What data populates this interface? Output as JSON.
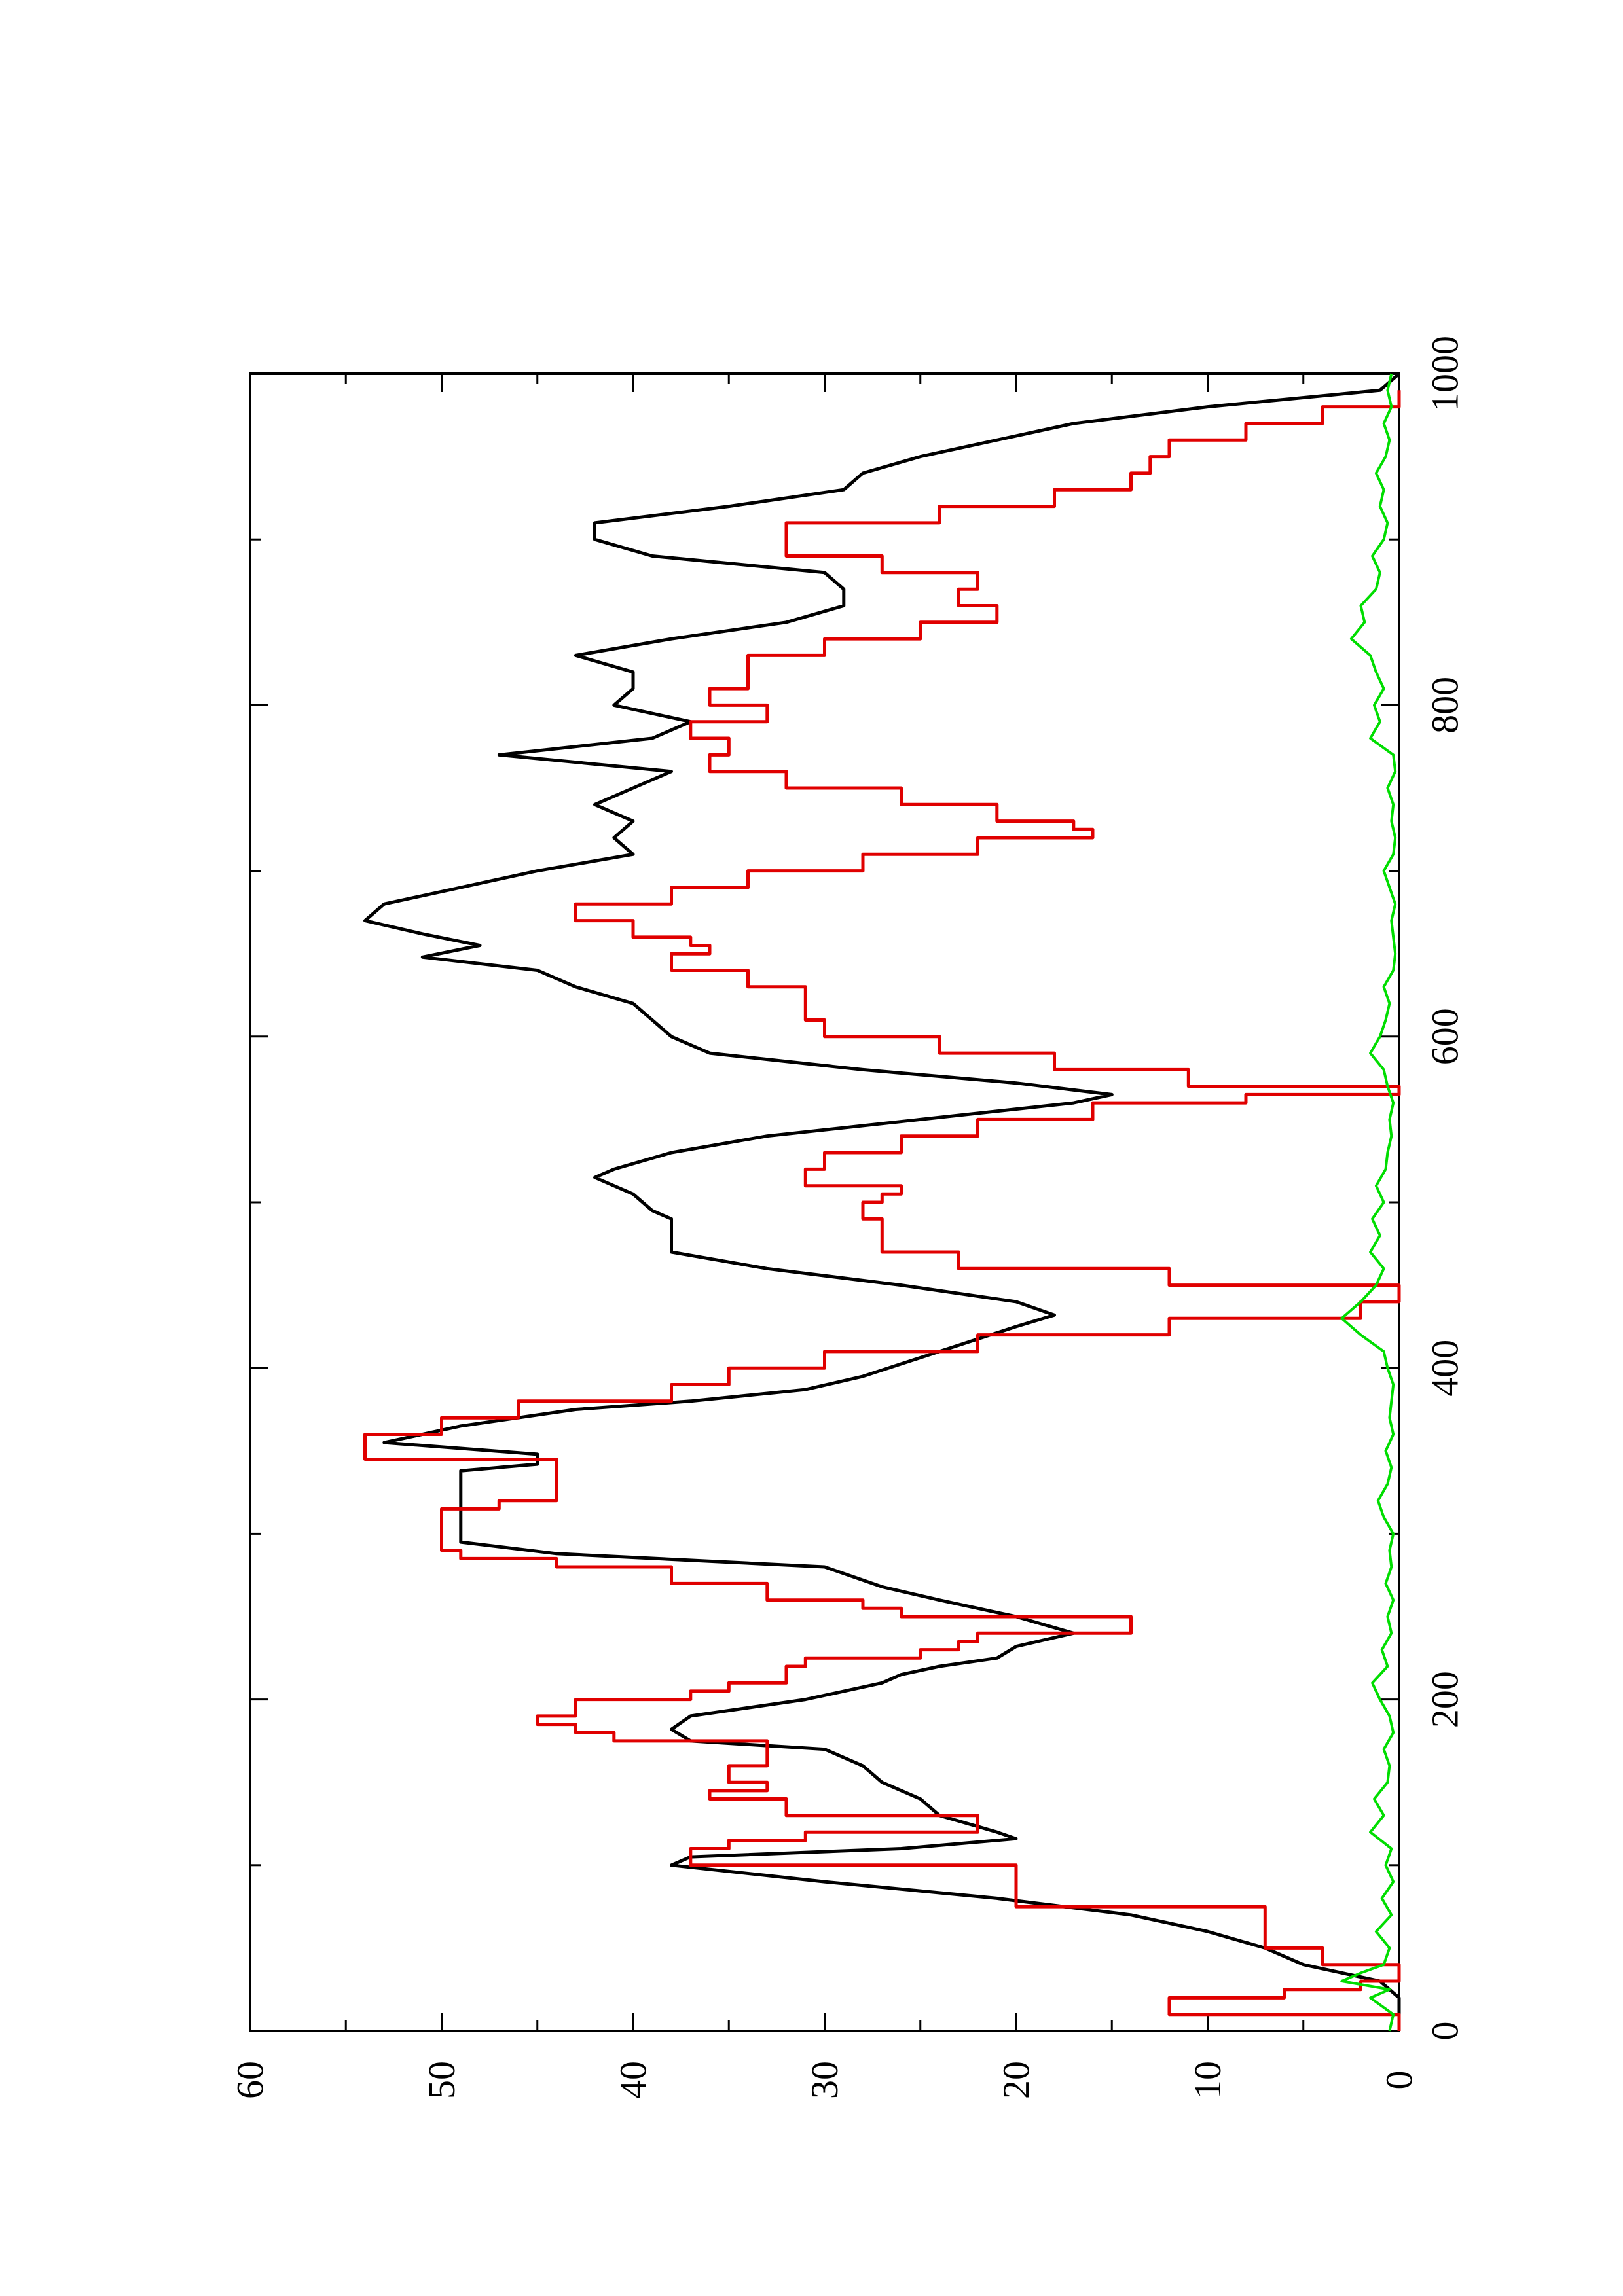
{
  "chart_data": {
    "type": "line",
    "orientation": "page rotated 90 degrees counter-clockwise",
    "title": "",
    "xlabel": "",
    "ylabel": "",
    "xlim": [
      0,
      1000
    ],
    "ylim": [
      0,
      60
    ],
    "x_ticks": [
      "0",
      "200",
      "400",
      "600",
      "800",
      "1000"
    ],
    "y_ticks": [
      "0",
      "10",
      "20",
      "30",
      "40",
      "50",
      "60"
    ],
    "grid": false,
    "legend": "none",
    "series": [
      {
        "color": "#000000",
        "style": "line",
        "points": [
          [
            0,
            0
          ],
          [
            10,
            0
          ],
          [
            20,
            0
          ],
          [
            30,
            1
          ],
          [
            40,
            5
          ],
          [
            50,
            7
          ],
          [
            60,
            10
          ],
          [
            70,
            14
          ],
          [
            80,
            21
          ],
          [
            90,
            30
          ],
          [
            100,
            38
          ],
          [
            105,
            37
          ],
          [
            110,
            26
          ],
          [
            116,
            20
          ],
          [
            120,
            21
          ],
          [
            130,
            24
          ],
          [
            140,
            25
          ],
          [
            150,
            27
          ],
          [
            160,
            28
          ],
          [
            170,
            30
          ],
          [
            175,
            37
          ],
          [
            182,
            38
          ],
          [
            190,
            37
          ],
          [
            200,
            31
          ],
          [
            210,
            27
          ],
          [
            215,
            26
          ],
          [
            220,
            24
          ],
          [
            225,
            21
          ],
          [
            232,
            20
          ],
          [
            240,
            17
          ],
          [
            250,
            20
          ],
          [
            260,
            24
          ],
          [
            268,
            27
          ],
          [
            280,
            30
          ],
          [
            288,
            44
          ],
          [
            295,
            49
          ],
          [
            310,
            49
          ],
          [
            320,
            49
          ],
          [
            330,
            49
          ],
          [
            338,
            49
          ],
          [
            342,
            45
          ],
          [
            348,
            45
          ],
          [
            355,
            53
          ],
          [
            365,
            49
          ],
          [
            375,
            43
          ],
          [
            380,
            37
          ],
          [
            387,
            31
          ],
          [
            395,
            28
          ],
          [
            410,
            24
          ],
          [
            425,
            20
          ],
          [
            432,
            18
          ],
          [
            440,
            20
          ],
          [
            450,
            26
          ],
          [
            460,
            33
          ],
          [
            470,
            38
          ],
          [
            480,
            38
          ],
          [
            490,
            38
          ],
          [
            495,
            39
          ],
          [
            505,
            40
          ],
          [
            515,
            42
          ],
          [
            520,
            41
          ],
          [
            530,
            38
          ],
          [
            540,
            33
          ],
          [
            550,
            25
          ],
          [
            560,
            17
          ],
          [
            565,
            15
          ],
          [
            572,
            20
          ],
          [
            580,
            28
          ],
          [
            590,
            36
          ],
          [
            600,
            38
          ],
          [
            610,
            39
          ],
          [
            620,
            40
          ],
          [
            630,
            43
          ],
          [
            640,
            45
          ],
          [
            648,
            51
          ],
          [
            655,
            48
          ],
          [
            662,
            51
          ],
          [
            670,
            54
          ],
          [
            680,
            53
          ],
          [
            690,
            49
          ],
          [
            700,
            45
          ],
          [
            710,
            40
          ],
          [
            720,
            41
          ],
          [
            730,
            40
          ],
          [
            740,
            42
          ],
          [
            750,
            40
          ],
          [
            760,
            38
          ],
          [
            770,
            47
          ],
          [
            780,
            39
          ],
          [
            790,
            37
          ],
          [
            800,
            41
          ],
          [
            810,
            40
          ],
          [
            820,
            40
          ],
          [
            830,
            43
          ],
          [
            840,
            38
          ],
          [
            850,
            32
          ],
          [
            860,
            29
          ],
          [
            870,
            29
          ],
          [
            880,
            30
          ],
          [
            890,
            39
          ],
          [
            900,
            42
          ],
          [
            910,
            42
          ],
          [
            920,
            35
          ],
          [
            930,
            29
          ],
          [
            940,
            28
          ],
          [
            950,
            25
          ],
          [
            960,
            21
          ],
          [
            970,
            17
          ],
          [
            980,
            10
          ],
          [
            990,
            1
          ],
          [
            1000,
            0
          ]
        ]
      },
      {
        "color": "#e00000",
        "style": "step",
        "points": [
          [
            0,
            0
          ],
          [
            10,
            12
          ],
          [
            20,
            6
          ],
          [
            25,
            2
          ],
          [
            30,
            0
          ],
          [
            40,
            4
          ],
          [
            50,
            7
          ],
          [
            60,
            7
          ],
          [
            75,
            20
          ],
          [
            100,
            37
          ],
          [
            110,
            35
          ],
          [
            115,
            31
          ],
          [
            120,
            22
          ],
          [
            130,
            32
          ],
          [
            140,
            36
          ],
          [
            145,
            33
          ],
          [
            150,
            35
          ],
          [
            160,
            33
          ],
          [
            170,
            33
          ],
          [
            175,
            41
          ],
          [
            180,
            43
          ],
          [
            185,
            45
          ],
          [
            190,
            43
          ],
          [
            200,
            37
          ],
          [
            205,
            35
          ],
          [
            210,
            32
          ],
          [
            220,
            31
          ],
          [
            225,
            25
          ],
          [
            230,
            23
          ],
          [
            235,
            22
          ],
          [
            240,
            14
          ],
          [
            250,
            26
          ],
          [
            255,
            28
          ],
          [
            260,
            33
          ],
          [
            270,
            38
          ],
          [
            280,
            44
          ],
          [
            285,
            49
          ],
          [
            290,
            50
          ],
          [
            310,
            50
          ],
          [
            315,
            47
          ],
          [
            320,
            44
          ],
          [
            340,
            44
          ],
          [
            345,
            54
          ],
          [
            350,
            54
          ],
          [
            360,
            50
          ],
          [
            370,
            46
          ],
          [
            380,
            38
          ],
          [
            390,
            35
          ],
          [
            400,
            30
          ],
          [
            410,
            22
          ],
          [
            420,
            12
          ],
          [
            430,
            2
          ],
          [
            440,
            0
          ],
          [
            450,
            12
          ],
          [
            460,
            23
          ],
          [
            470,
            27
          ],
          [
            480,
            27
          ],
          [
            490,
            28
          ],
          [
            500,
            27
          ],
          [
            505,
            26
          ],
          [
            510,
            31
          ],
          [
            520,
            30
          ],
          [
            530,
            26
          ],
          [
            540,
            22
          ],
          [
            550,
            16
          ],
          [
            560,
            8
          ],
          [
            565,
            0
          ],
          [
            570,
            11
          ],
          [
            580,
            18
          ],
          [
            590,
            24
          ],
          [
            600,
            30
          ],
          [
            610,
            31
          ],
          [
            620,
            31
          ],
          [
            630,
            34
          ],
          [
            640,
            38
          ],
          [
            650,
            36
          ],
          [
            655,
            37
          ],
          [
            660,
            40
          ],
          [
            670,
            43
          ],
          [
            680,
            38
          ],
          [
            690,
            34
          ],
          [
            700,
            28
          ],
          [
            710,
            22
          ],
          [
            720,
            16
          ],
          [
            725,
            17
          ],
          [
            730,
            21
          ],
          [
            740,
            26
          ],
          [
            750,
            32
          ],
          [
            760,
            36
          ],
          [
            770,
            35
          ],
          [
            780,
            37
          ],
          [
            790,
            33
          ],
          [
            800,
            36
          ],
          [
            810,
            34
          ],
          [
            820,
            34
          ],
          [
            830,
            30
          ],
          [
            840,
            25
          ],
          [
            850,
            21
          ],
          [
            860,
            23
          ],
          [
            870,
            22
          ],
          [
            880,
            27
          ],
          [
            890,
            32
          ],
          [
            900,
            32
          ],
          [
            910,
            24
          ],
          [
            920,
            18
          ],
          [
            930,
            14
          ],
          [
            940,
            13
          ],
          [
            950,
            12
          ],
          [
            960,
            8
          ],
          [
            970,
            4
          ],
          [
            980,
            0
          ],
          [
            990,
            0
          ]
        ]
      },
      {
        "color": "#00dd00",
        "style": "noise",
        "points": [
          [
            0,
            0.5
          ],
          [
            10,
            0.3
          ],
          [
            20,
            1.5
          ],
          [
            25,
            0.5
          ],
          [
            30,
            3
          ],
          [
            35,
            2
          ],
          [
            40,
            0.8
          ],
          [
            50,
            0.5
          ],
          [
            60,
            1.2
          ],
          [
            70,
            0.4
          ],
          [
            80,
            0.9
          ],
          [
            90,
            0.3
          ],
          [
            100,
            0.7
          ],
          [
            110,
            0.4
          ],
          [
            120,
            1.5
          ],
          [
            130,
            0.8
          ],
          [
            140,
            1.3
          ],
          [
            150,
            0.6
          ],
          [
            160,
            0.5
          ],
          [
            170,
            0.8
          ],
          [
            180,
            0.3
          ],
          [
            190,
            0.5
          ],
          [
            200,
            1
          ],
          [
            210,
            1.4
          ],
          [
            220,
            0.6
          ],
          [
            230,
            0.9
          ],
          [
            240,
            0.4
          ],
          [
            250,
            0.6
          ],
          [
            260,
            0.3
          ],
          [
            270,
            0.7
          ],
          [
            280,
            0.4
          ],
          [
            290,
            0.5
          ],
          [
            300,
            0.3
          ],
          [
            310,
            0.8
          ],
          [
            320,
            1.1
          ],
          [
            330,
            0.6
          ],
          [
            340,
            0.4
          ],
          [
            350,
            0.7
          ],
          [
            360,
            0.3
          ],
          [
            370,
            0.5
          ],
          [
            380,
            0.4
          ],
          [
            390,
            0.3
          ],
          [
            400,
            0.6
          ],
          [
            410,
            0.8
          ],
          [
            420,
            2
          ],
          [
            430,
            3
          ],
          [
            440,
            2
          ],
          [
            450,
            1.2
          ],
          [
            460,
            0.8
          ],
          [
            470,
            1.5
          ],
          [
            480,
            1
          ],
          [
            490,
            1.4
          ],
          [
            500,
            0.8
          ],
          [
            510,
            1.2
          ],
          [
            520,
            0.7
          ],
          [
            530,
            0.6
          ],
          [
            540,
            0.4
          ],
          [
            550,
            0.5
          ],
          [
            560,
            0.3
          ],
          [
            570,
            0.6
          ],
          [
            580,
            0.8
          ],
          [
            590,
            1.5
          ],
          [
            600,
            1
          ],
          [
            610,
            0.7
          ],
          [
            620,
            0.5
          ],
          [
            630,
            0.8
          ],
          [
            640,
            0.3
          ],
          [
            650,
            0.2
          ],
          [
            660,
            0.3
          ],
          [
            670,
            0.4
          ],
          [
            680,
            0.2
          ],
          [
            690,
            0.5
          ],
          [
            700,
            0.8
          ],
          [
            710,
            0.3
          ],
          [
            720,
            0.2
          ],
          [
            730,
            0.4
          ],
          [
            740,
            0.3
          ],
          [
            750,
            0.6
          ],
          [
            760,
            0.2
          ],
          [
            770,
            0.3
          ],
          [
            780,
            1.5
          ],
          [
            790,
            1
          ],
          [
            800,
            1.3
          ],
          [
            810,
            0.8
          ],
          [
            820,
            1.2
          ],
          [
            830,
            1.5
          ],
          [
            840,
            2.5
          ],
          [
            850,
            1.8
          ],
          [
            860,
            2
          ],
          [
            870,
            1.2
          ],
          [
            880,
            1
          ],
          [
            890,
            1.4
          ],
          [
            900,
            0.8
          ],
          [
            910,
            0.6
          ],
          [
            920,
            1
          ],
          [
            930,
            0.8
          ],
          [
            940,
            1.2
          ],
          [
            950,
            0.7
          ],
          [
            960,
            0.5
          ],
          [
            970,
            0.8
          ],
          [
            980,
            0.4
          ],
          [
            990,
            0.6
          ],
          [
            1000,
            0.4
          ]
        ]
      }
    ]
  }
}
